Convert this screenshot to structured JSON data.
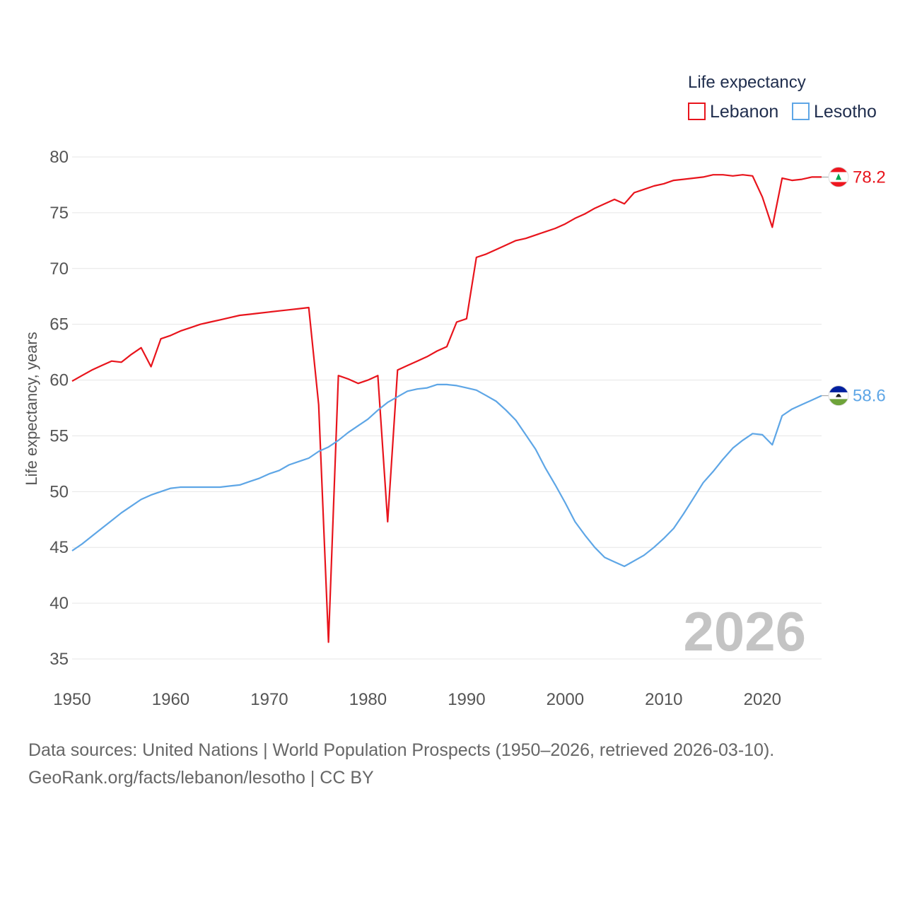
{
  "chart_data": {
    "type": "line",
    "title": "Life expectancy",
    "xlabel": "",
    "ylabel": "Life expectancy, years",
    "xlim": [
      1950,
      2026
    ],
    "ylim": [
      34,
      81
    ],
    "x_ticks": [
      1950,
      1960,
      1970,
      1980,
      1990,
      2000,
      2010,
      2020
    ],
    "y_ticks": [
      35,
      40,
      45,
      50,
      55,
      60,
      65,
      70,
      75,
      80
    ],
    "x": [
      1950,
      1951,
      1952,
      1953,
      1954,
      1955,
      1956,
      1957,
      1958,
      1959,
      1960,
      1961,
      1962,
      1963,
      1964,
      1965,
      1966,
      1967,
      1968,
      1969,
      1970,
      1971,
      1972,
      1973,
      1974,
      1975,
      1976,
      1977,
      1978,
      1979,
      1980,
      1981,
      1982,
      1983,
      1984,
      1985,
      1986,
      1987,
      1988,
      1989,
      1990,
      1991,
      1992,
      1993,
      1994,
      1995,
      1996,
      1997,
      1998,
      1999,
      2000,
      2001,
      2002,
      2003,
      2004,
      2005,
      2006,
      2007,
      2008,
      2009,
      2010,
      2011,
      2012,
      2013,
      2014,
      2015,
      2016,
      2017,
      2018,
      2019,
      2020,
      2021,
      2022,
      2023,
      2024,
      2025,
      2026
    ],
    "series": [
      {
        "name": "Lebanon",
        "color": "#e8141c",
        "end_label": "78.2",
        "values": [
          59.9,
          60.4,
          60.9,
          61.3,
          61.7,
          61.6,
          62.3,
          62.9,
          61.2,
          63.7,
          64.0,
          64.4,
          64.7,
          65.0,
          65.2,
          65.4,
          65.6,
          65.8,
          65.9,
          66.0,
          66.1,
          66.2,
          66.3,
          66.4,
          66.5,
          57.8,
          36.5,
          60.4,
          60.1,
          59.7,
          60.0,
          60.4,
          47.3,
          60.9,
          61.3,
          61.7,
          62.1,
          62.6,
          63.0,
          65.2,
          65.5,
          71.0,
          71.3,
          71.7,
          72.1,
          72.5,
          72.7,
          73.0,
          73.3,
          73.6,
          74.0,
          74.5,
          74.9,
          75.4,
          75.8,
          76.2,
          75.8,
          76.8,
          77.1,
          77.4,
          77.6,
          77.9,
          78.0,
          78.1,
          78.2,
          78.4,
          78.4,
          78.3,
          78.4,
          78.3,
          76.4,
          73.7,
          78.1,
          77.9,
          78.0,
          78.2,
          78.2
        ]
      },
      {
        "name": "Lesotho",
        "color": "#5ea6e6",
        "end_label": "58.6",
        "values": [
          44.7,
          45.3,
          46.0,
          46.7,
          47.4,
          48.1,
          48.7,
          49.3,
          49.7,
          50.0,
          50.3,
          50.4,
          50.4,
          50.4,
          50.4,
          50.4,
          50.5,
          50.6,
          50.9,
          51.2,
          51.6,
          51.9,
          52.4,
          52.7,
          53.0,
          53.6,
          54.0,
          54.6,
          55.3,
          55.9,
          56.5,
          57.3,
          58.0,
          58.5,
          59.0,
          59.2,
          59.3,
          59.6,
          59.6,
          59.5,
          59.3,
          59.1,
          58.6,
          58.1,
          57.3,
          56.4,
          55.1,
          53.8,
          52.1,
          50.6,
          49.0,
          47.3,
          46.1,
          45.0,
          44.1,
          43.7,
          43.3,
          43.8,
          44.3,
          45.0,
          45.8,
          46.7,
          48.0,
          49.4,
          50.8,
          51.8,
          52.9,
          53.9,
          54.6,
          55.2,
          55.1,
          54.2,
          56.8,
          57.4,
          57.8,
          58.2,
          58.6
        ]
      }
    ],
    "current_year_label": "2026",
    "legend_position": "top-right"
  },
  "footer": {
    "line1": "Data sources: United Nations | World Population Prospects (1950–2026, retrieved 2026-03-10).",
    "line2": "GeoRank.org/facts/lebanon/lesotho | CC BY"
  }
}
